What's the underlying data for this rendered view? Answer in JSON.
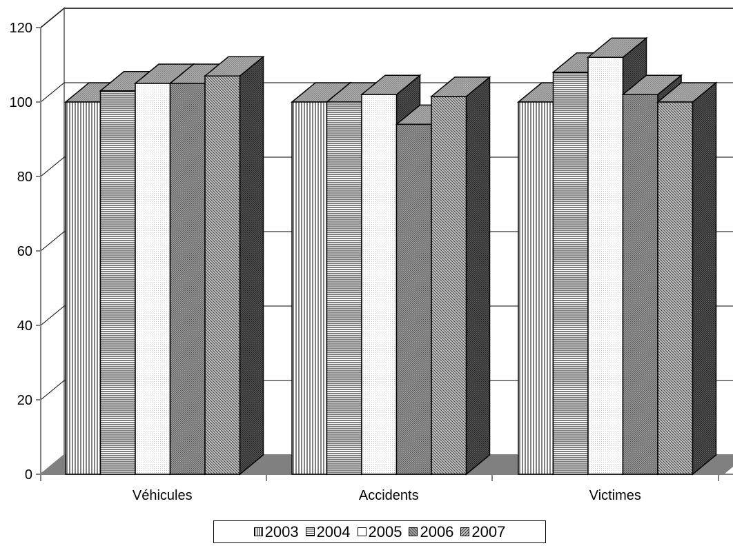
{
  "chart_data": {
    "type": "bar",
    "categories": [
      "Véhicules",
      "Accidents",
      "Victimes"
    ],
    "series": [
      {
        "name": "2003",
        "values": [
          100,
          100,
          100
        ]
      },
      {
        "name": "2004",
        "values": [
          103,
          100,
          108
        ]
      },
      {
        "name": "2005",
        "values": [
          105,
          102,
          112
        ]
      },
      {
        "name": "2006",
        "values": [
          105,
          94,
          102
        ]
      },
      {
        "name": "2007",
        "values": [
          107,
          101.5,
          100
        ]
      }
    ],
    "y_ticks": [
      "0",
      "20",
      "40",
      "60",
      "80",
      "100",
      "120"
    ],
    "ylim": [
      0,
      120
    ],
    "title": "",
    "xlabel": "",
    "ylabel": "",
    "grid": true,
    "three_d": true,
    "legend_position": "bottom",
    "colors": {
      "floor": "#808080",
      "wall": "#ffffff",
      "axis": "#808080",
      "bar_side": "#4d4d4d",
      "bar_top": "#a6a6a6"
    }
  }
}
